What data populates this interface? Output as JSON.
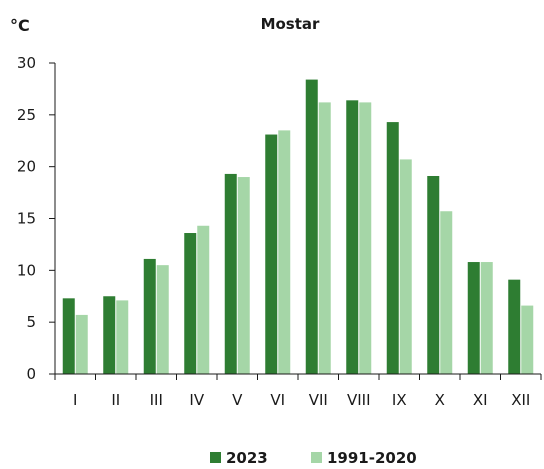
{
  "chart_data": {
    "type": "bar",
    "title": "Mostar",
    "unit_label": "°C",
    "categories": [
      "I",
      "II",
      "III",
      "IV",
      "V",
      "VI",
      "VII",
      "VIII",
      "IX",
      "X",
      "XI",
      "XII"
    ],
    "series": [
      {
        "name": "2023",
        "color": "#2e7d32",
        "values": [
          7.3,
          7.5,
          11.1,
          13.6,
          19.3,
          23.1,
          28.4,
          26.4,
          24.3,
          19.1,
          10.8,
          9.1
        ]
      },
      {
        "name": "1991-2020",
        "color": "#a5d6a7",
        "values": [
          5.7,
          7.1,
          10.5,
          14.3,
          19.0,
          23.5,
          26.2,
          26.2,
          20.7,
          15.7,
          10.8,
          6.6
        ]
      }
    ],
    "ylim": [
      0,
      30
    ],
    "yticks": [
      0,
      5,
      10,
      15,
      20,
      25,
      30
    ],
    "grid": false,
    "legend_position": "bottom"
  }
}
